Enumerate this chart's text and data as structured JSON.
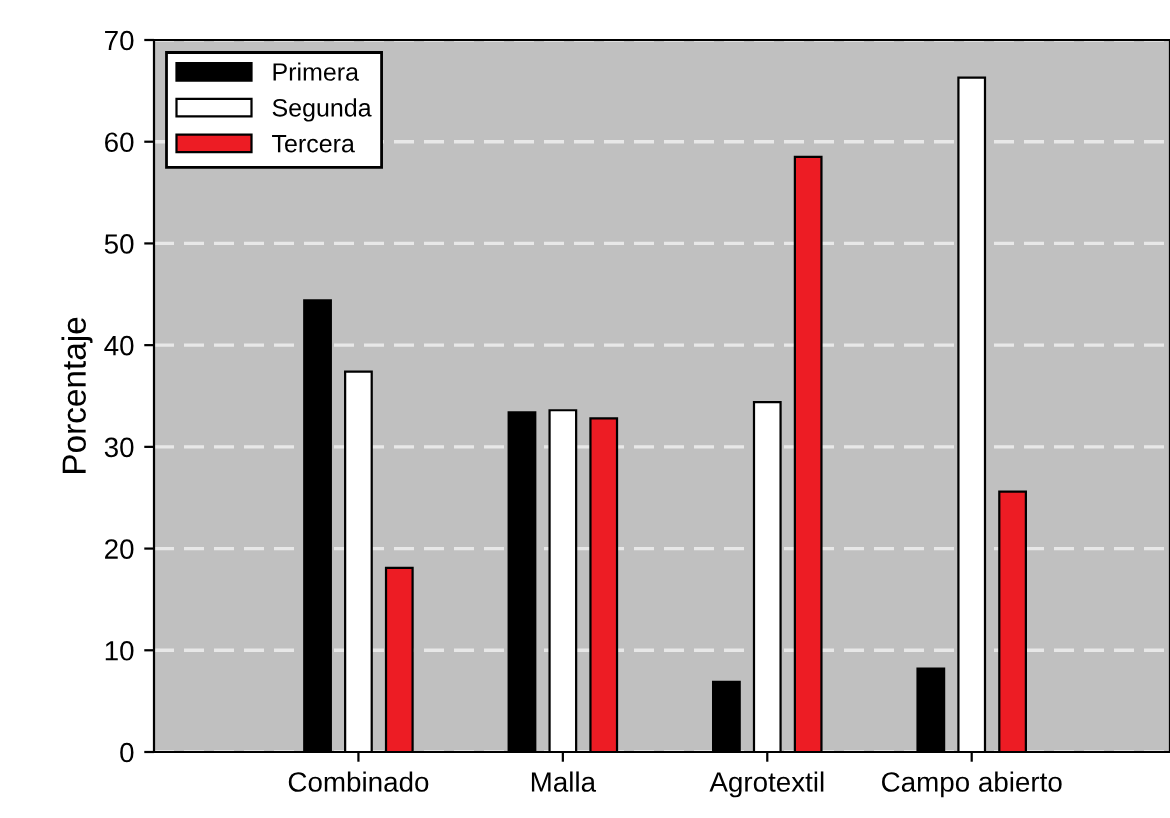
{
  "chart_data": {
    "type": "bar",
    "ylabel": "Porcentaje",
    "categories": [
      "Combinado",
      "Malla",
      "Agrotextil",
      "Campo abierto"
    ],
    "series": [
      {
        "name": "Primera",
        "color": "#000000",
        "values": [
          44.4,
          33.4,
          6.9,
          8.2
        ]
      },
      {
        "name": "Segunda",
        "color": "#ffffff",
        "values": [
          37.4,
          33.6,
          34.4,
          66.3
        ]
      },
      {
        "name": "Tercera",
        "color": "#ed1c24",
        "values": [
          18.1,
          32.8,
          58.5,
          25.6
        ]
      }
    ],
    "ylim": [
      0,
      70
    ],
    "yticks": [
      0,
      10,
      20,
      30,
      40,
      50,
      60,
      70
    ],
    "grid": "y",
    "legend": "top left"
  }
}
